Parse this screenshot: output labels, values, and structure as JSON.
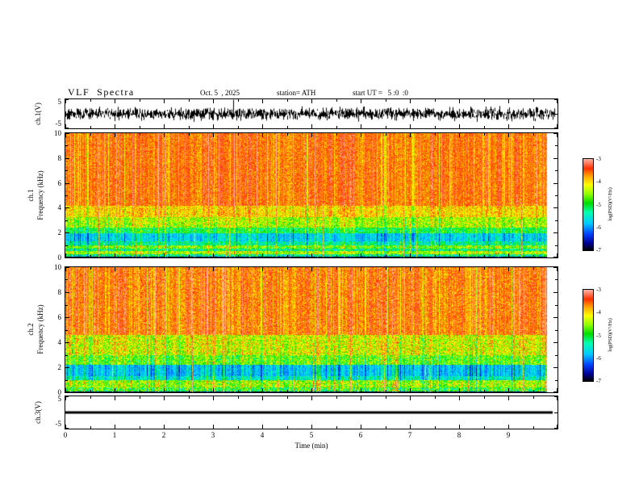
{
  "header": {
    "title": "VLF  Spectra",
    "date": "Oct. 5  , 2025",
    "station": "station= ATH",
    "start_ut": "start UT =   5 :0  :0"
  },
  "panel_labels": {
    "ch1_wave": "ch.1(V)",
    "ch1": "ch.1",
    "freq": "Frequency  (kHz)",
    "ch2": "ch.2",
    "ch3_wave": "ch.3(V)"
  },
  "axes": {
    "x": {
      "label": "Time  (min)",
      "min": 0,
      "max": 10,
      "tick_labels": [
        "0",
        "1",
        "2",
        "3",
        "4",
        "5",
        "6",
        "7",
        "8",
        "9"
      ]
    },
    "spec_y": {
      "min": 0,
      "max": 10,
      "tick_labels": [
        "0",
        "2",
        "4",
        "6",
        "8",
        "10"
      ]
    },
    "wave_y": {
      "min": -5,
      "max": 5,
      "top_label": "5",
      "bottom_label": "-5"
    }
  },
  "colorbar": {
    "label": "log(PSD)(V²/Hz)",
    "tick_labels": [
      "-3",
      "-4",
      "-5",
      "-6",
      "-7"
    ],
    "zlim": [
      -7,
      -3
    ],
    "stops": [
      [
        0.0,
        "#000000"
      ],
      [
        0.08,
        "#000090"
      ],
      [
        0.18,
        "#0040ff"
      ],
      [
        0.3,
        "#00ccff"
      ],
      [
        0.42,
        "#00ffb0"
      ],
      [
        0.52,
        "#00dd00"
      ],
      [
        0.62,
        "#90ff00"
      ],
      [
        0.72,
        "#ffff00"
      ],
      [
        0.82,
        "#ffa000"
      ],
      [
        0.9,
        "#ff3000"
      ],
      [
        1.0,
        "#ffb0a0"
      ]
    ]
  },
  "chart_data": [
    {
      "id": "ch1_waveform",
      "type": "line",
      "title": "ch.1(V) raw signal",
      "xlabel": "Time (min)",
      "xlim": [
        0,
        10
      ],
      "ylabel": "ch.1(V)",
      "ylim": [
        -5,
        5
      ],
      "data_end_min": 9.95,
      "description": "continuous broadband noise centered on 0 V, typical excursion ±2 V with spikes toward ±4 V",
      "noise_amplitude_v": 2.0
    },
    {
      "id": "ch1_spectrogram",
      "type": "heatmap",
      "title": "ch.1 VLF spectrogram",
      "xlabel": "Time (min)",
      "xlim": [
        0,
        10
      ],
      "data_end_min": 9.78,
      "ylabel": "Frequency (kHz)",
      "ylim": [
        0,
        10
      ],
      "zlabel": "log(PSD)(V²/Hz)",
      "zlim": [
        -7,
        -3
      ],
      "bands": [
        {
          "f_lo": 0.0,
          "f_hi": 0.12,
          "mean": -6.9,
          "spread": 0.15
        },
        {
          "f_lo": 0.12,
          "f_hi": 0.3,
          "mean": -5.3,
          "spread": 0.7
        },
        {
          "f_lo": 0.3,
          "f_hi": 0.55,
          "mean": -4.4,
          "spread": 0.5
        },
        {
          "f_lo": 0.55,
          "f_hi": 0.75,
          "mean": -5.2,
          "spread": 0.5
        },
        {
          "f_lo": 0.75,
          "f_hi": 1.0,
          "mean": -4.6,
          "spread": 0.6
        },
        {
          "f_lo": 1.0,
          "f_hi": 1.3,
          "mean": -5.3,
          "spread": 0.5
        },
        {
          "f_lo": 1.3,
          "f_hi": 2.0,
          "mean": -5.7,
          "spread": 0.3
        },
        {
          "f_lo": 2.0,
          "f_hi": 2.45,
          "mean": -5.0,
          "spread": 0.5
        },
        {
          "f_lo": 2.45,
          "f_hi": 3.3,
          "mean": -4.4,
          "spread": 0.55
        },
        {
          "f_lo": 3.3,
          "f_hi": 4.2,
          "mean": -3.95,
          "spread": 0.45
        },
        {
          "f_lo": 4.2,
          "f_hi": 10.0,
          "mean": -3.55,
          "spread": 0.3
        }
      ],
      "streaks": {
        "probability": 0.22,
        "boost_lo": 0.25,
        "boost_hi": 1.1,
        "impulse_probability": 0.05,
        "impulse_boost": 1.6
      }
    },
    {
      "id": "ch2_spectrogram",
      "type": "heatmap",
      "title": "ch.2 VLF spectrogram",
      "xlabel": "Time (min)",
      "xlim": [
        0,
        10
      ],
      "data_end_min": 9.78,
      "ylabel": "Frequency (kHz)",
      "ylim": [
        0,
        10
      ],
      "zlabel": "log(PSD)(V²/Hz)",
      "zlim": [
        -7,
        -3
      ],
      "bands": [
        {
          "f_lo": 0.0,
          "f_hi": 0.12,
          "mean": -6.9,
          "spread": 0.15
        },
        {
          "f_lo": 0.12,
          "f_hi": 0.4,
          "mean": -4.9,
          "spread": 0.7
        },
        {
          "f_lo": 0.4,
          "f_hi": 1.0,
          "mean": -4.5,
          "spread": 0.6
        },
        {
          "f_lo": 1.0,
          "f_hi": 1.35,
          "mean": -5.5,
          "spread": 0.4
        },
        {
          "f_lo": 1.35,
          "f_hi": 2.2,
          "mean": -5.8,
          "spread": 0.3
        },
        {
          "f_lo": 2.2,
          "f_hi": 3.0,
          "mean": -4.7,
          "spread": 0.6
        },
        {
          "f_lo": 3.0,
          "f_hi": 4.6,
          "mean": -4.25,
          "spread": 0.6
        },
        {
          "f_lo": 4.6,
          "f_hi": 10.0,
          "mean": -3.6,
          "spread": 0.35
        }
      ],
      "streaks": {
        "probability": 0.3,
        "boost_lo": 0.25,
        "boost_hi": 1.1,
        "impulse_probability": 0.06,
        "impulse_boost": 1.6
      }
    },
    {
      "id": "ch3_waveform",
      "type": "line",
      "title": "ch.3(V) raw signal",
      "xlabel": "Time (min)",
      "xlim": [
        0,
        10
      ],
      "ylabel": "ch.3(V)",
      "ylim": [
        -5,
        5
      ],
      "data_end_min": 9.9,
      "description": "flat line at 0 V for the whole record",
      "value_v": 0
    }
  ]
}
